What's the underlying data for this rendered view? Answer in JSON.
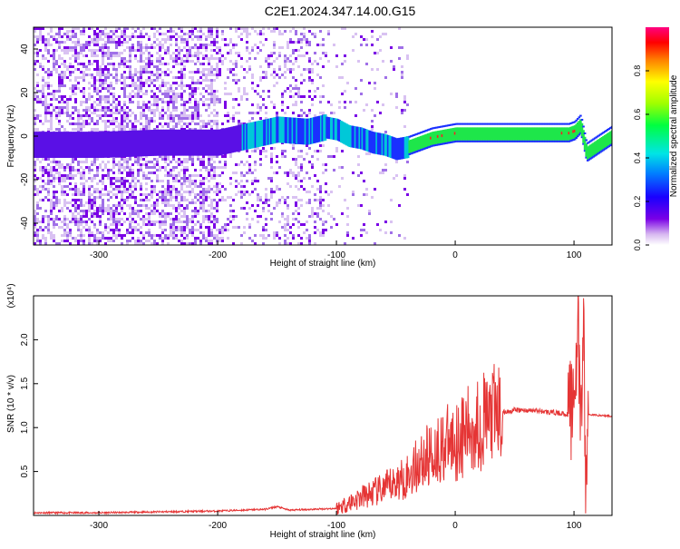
{
  "title": "C2E1.2024.347.14.00.G15",
  "chart_data": [
    {
      "type": "heatmap",
      "name": "spectrogram",
      "xlabel": "Height of straight line (km)",
      "ylabel": "Frequency (Hz)",
      "xlim": [
        -355,
        132
      ],
      "ylim": [
        -50,
        50
      ],
      "xticks": [
        -300,
        -200,
        -100,
        0,
        100
      ],
      "yticks": [
        -40,
        -20,
        0,
        20,
        40
      ],
      "colorbar": {
        "label": "Normalized spectral amplitude",
        "range": [
          0,
          1
        ],
        "ticks": [
          "0.0",
          "0.2",
          "0.4",
          "0.6",
          "0.8"
        ]
      },
      "ridge": {
        "x": [
          -355,
          -300,
          -250,
          -200,
          -175,
          -150,
          -125,
          -110,
          -100,
          -90,
          -80,
          -70,
          -60,
          -50,
          -40,
          -30,
          -20,
          -10,
          0,
          20,
          50,
          80,
          95,
          100,
          105,
          110,
          132
        ],
        "y": [
          -4,
          -4,
          -3,
          -3,
          0,
          3,
          2,
          4,
          3,
          0,
          -1,
          -3,
          -4,
          -6,
          -5,
          -3,
          -1,
          0,
          1,
          1,
          1,
          1,
          1,
          2,
          5,
          -8,
          0
        ]
      }
    },
    {
      "type": "line",
      "name": "snr",
      "xlabel": "Height of straight line (km)",
      "ylabel": "SNR (10 * v/v)",
      "yunit": "(x10⁴)",
      "xlim": [
        -355,
        132
      ],
      "ylim": [
        0,
        2.5
      ],
      "xticks": [
        -300,
        -200,
        -100,
        0,
        100
      ],
      "yticks": [
        "0.5",
        "1.0",
        "1.5",
        "2.0"
      ],
      "series": [
        {
          "color": "#e53535",
          "x": [
            -355,
            -300,
            -250,
            -200,
            -160,
            -150,
            -140,
            -100,
            -80,
            -60,
            -40,
            -30,
            -20,
            -10,
            0,
            10,
            20,
            30,
            40,
            50,
            70,
            90,
            95,
            100,
            103,
            106,
            108,
            110,
            112,
            120,
            132
          ],
          "y": [
            0.03,
            0.03,
            0.04,
            0.05,
            0.07,
            0.1,
            0.06,
            0.08,
            0.2,
            0.3,
            0.45,
            0.6,
            0.7,
            0.8,
            0.85,
            0.95,
            1.05,
            1.12,
            1.17,
            1.2,
            1.19,
            1.16,
            1.15,
            1.3,
            2.2,
            0.9,
            2.3,
            0.2,
            1.15,
            1.14,
            1.13
          ]
        }
      ]
    }
  ]
}
